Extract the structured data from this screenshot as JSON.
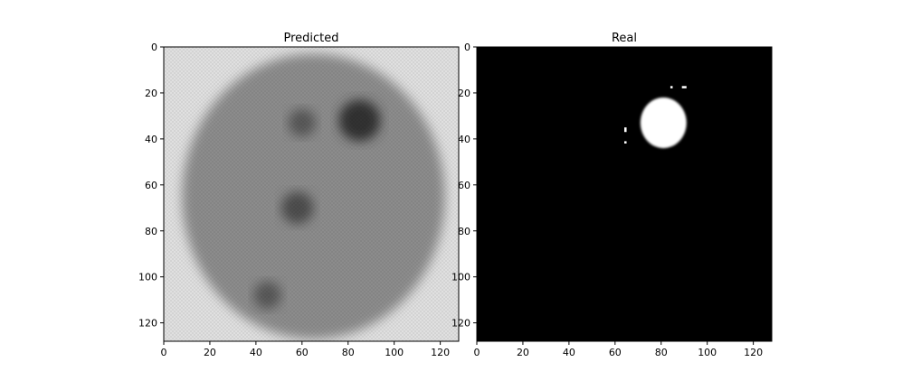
{
  "chart_data": [
    {
      "type": "heatmap",
      "title": "Predicted",
      "colormap": "gray",
      "xlim": [
        0,
        128
      ],
      "ylim": [
        128,
        0
      ],
      "xticks": [
        0,
        20,
        40,
        60,
        80,
        100,
        120
      ],
      "yticks": [
        0,
        20,
        40,
        60,
        80,
        100,
        120
      ],
      "xtick_labels": [
        "0",
        "20",
        "40",
        "60",
        "80",
        "100",
        "120"
      ],
      "ytick_labels": [
        "0",
        "20",
        "40",
        "60",
        "80",
        "100",
        "120"
      ],
      "xlabel": "",
      "ylabel": "",
      "content": "grayscale reconstruction of an axial brain MRI slice",
      "background_value": 0.88,
      "brain_region": {
        "center": [
          65,
          65
        ],
        "radius_x": 57,
        "radius_y": 62
      },
      "dark_regions": [
        {
          "center": [
            85,
            32
          ],
          "radius": 9,
          "value": 0.2
        },
        {
          "center": [
            60,
            33
          ],
          "radius": 6,
          "value": 0.35
        },
        {
          "center": [
            58,
            70
          ],
          "radius": 7,
          "value": 0.3
        },
        {
          "center": [
            45,
            108
          ],
          "radius": 6,
          "value": 0.35
        }
      ]
    },
    {
      "type": "heatmap",
      "title": "Real",
      "colormap": "gray",
      "xlim": [
        0,
        128
      ],
      "ylim": [
        128,
        0
      ],
      "xticks": [
        0,
        20,
        40,
        60,
        80,
        100,
        120
      ],
      "yticks": [
        0,
        20,
        40,
        60,
        80,
        100,
        120
      ],
      "xtick_labels": [
        "0",
        "20",
        "40",
        "60",
        "80",
        "100",
        "120"
      ],
      "ytick_labels": [
        "0",
        "20",
        "40",
        "60",
        "80",
        "100",
        "120"
      ],
      "xlabel": "",
      "ylabel": "",
      "content": "binary tumor segmentation mask",
      "background_value": 0.0,
      "mask_blob": {
        "center": [
          81,
          33
        ],
        "radius_x": 10,
        "radius_y": 11,
        "value": 1.0
      },
      "mask_specks": [
        {
          "x": 64,
          "y": 35,
          "w": 1,
          "h": 2
        },
        {
          "x": 64,
          "y": 41,
          "w": 1,
          "h": 1
        },
        {
          "x": 84,
          "y": 17,
          "w": 1,
          "h": 1
        },
        {
          "x": 89,
          "y": 17,
          "w": 2,
          "h": 1
        }
      ]
    }
  ]
}
